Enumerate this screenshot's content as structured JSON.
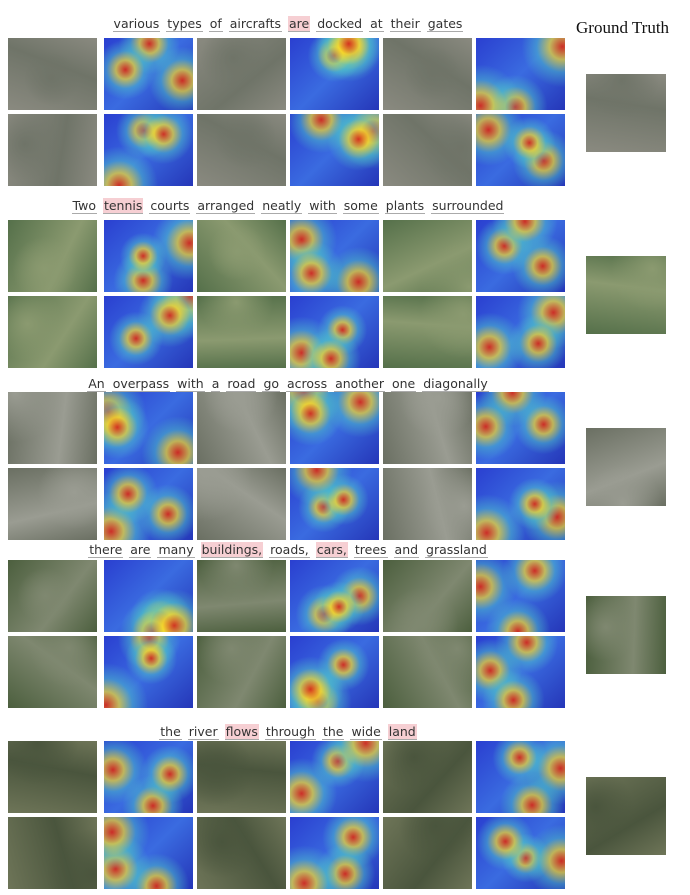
{
  "header": {
    "title": "Ground Truth"
  },
  "groups": [
    {
      "caption": [
        {
          "text": "various",
          "highlight": false
        },
        {
          "text": "types",
          "highlight": false
        },
        {
          "text": "of",
          "highlight": false
        },
        {
          "text": "aircrafts",
          "highlight": false
        },
        {
          "text": "are",
          "highlight": true
        },
        {
          "text": "docked",
          "highlight": false
        },
        {
          "text": "at",
          "highlight": false
        },
        {
          "text": "their",
          "highlight": false
        },
        {
          "text": "gates",
          "highlight": false
        }
      ]
    },
    {
      "caption": [
        {
          "text": "Two",
          "highlight": false
        },
        {
          "text": "tennis",
          "highlight": true
        },
        {
          "text": "courts",
          "highlight": false
        },
        {
          "text": "arranged",
          "highlight": false
        },
        {
          "text": "neatly",
          "highlight": false
        },
        {
          "text": "with",
          "highlight": false
        },
        {
          "text": "some",
          "highlight": false
        },
        {
          "text": "plants",
          "highlight": false
        },
        {
          "text": "surrounded",
          "highlight": false
        }
      ]
    },
    {
      "caption": [
        {
          "text": "An",
          "highlight": false
        },
        {
          "text": "overpass",
          "highlight": false
        },
        {
          "text": "with",
          "highlight": false
        },
        {
          "text": "a",
          "highlight": false
        },
        {
          "text": "road",
          "highlight": false
        },
        {
          "text": "go",
          "highlight": false
        },
        {
          "text": "across",
          "highlight": false
        },
        {
          "text": "another",
          "highlight": false
        },
        {
          "text": "one",
          "highlight": false
        },
        {
          "text": "diagonally",
          "highlight": false
        }
      ]
    },
    {
      "caption": [
        {
          "text": "there",
          "highlight": false
        },
        {
          "text": "are",
          "highlight": false
        },
        {
          "text": "many",
          "highlight": false
        },
        {
          "text": "buildings,",
          "highlight": true
        },
        {
          "text": "roads,",
          "highlight": false
        },
        {
          "text": "cars,",
          "highlight": true
        },
        {
          "text": "trees",
          "highlight": false
        },
        {
          "text": "and",
          "highlight": false
        },
        {
          "text": "grassland",
          "highlight": false
        }
      ]
    },
    {
      "caption": [
        {
          "text": "the",
          "highlight": false
        },
        {
          "text": "river",
          "highlight": false
        },
        {
          "text": "flows",
          "highlight": true
        },
        {
          "text": "through",
          "highlight": false
        },
        {
          "text": "the",
          "highlight": false
        },
        {
          "text": "wide",
          "highlight": false
        },
        {
          "text": "land",
          "highlight": true
        }
      ]
    }
  ]
}
